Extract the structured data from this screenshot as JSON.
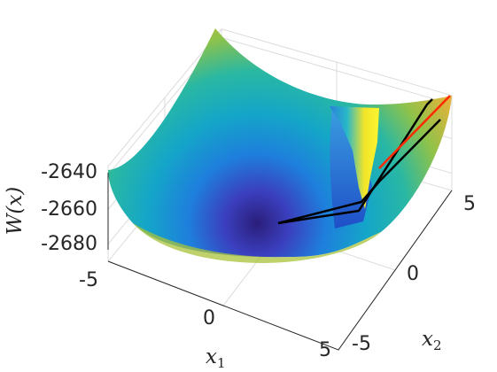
{
  "chart_data": {
    "type": "surface",
    "title": "",
    "xlabel": "x",
    "xlabel_sub": "1",
    "ylabel": "x",
    "ylabel_sub": "2",
    "zlabel": "W(x)",
    "xlim": [
      -5,
      5
    ],
    "ylim": [
      -5,
      5
    ],
    "zlim": [
      -2690,
      -2635
    ],
    "x_ticks": [
      -5,
      0,
      5
    ],
    "x_tick_labels": [
      "-5",
      "0",
      "5"
    ],
    "y_ticks": [
      -5,
      0,
      5
    ],
    "y_tick_labels": [
      "-5",
      "0",
      "5"
    ],
    "z_ticks": [
      -2640,
      -2660,
      -2680
    ],
    "z_tick_labels": [
      "-2640",
      "-2660",
      "-2680"
    ],
    "grid": true,
    "colormap": "parula",
    "surface": {
      "minimum": {
        "x": 0,
        "y": 0,
        "z": -2688
      },
      "corner_max_z": -2636
    },
    "curves": [
      {
        "color": "#000000",
        "points": [
          [
            0.0,
            0.0
          ],
          [
            3.0,
            1.4
          ],
          [
            5.0,
            5.0
          ]
        ]
      },
      {
        "color": "#000000",
        "points": [
          [
            0.0,
            0.0
          ],
          [
            3.2,
            0.5
          ],
          [
            5.0,
            3.6
          ]
        ]
      },
      {
        "color": "#ff2a00",
        "points": [
          [
            3.3,
            1.5
          ],
          [
            5.0,
            4.7
          ]
        ]
      }
    ]
  }
}
